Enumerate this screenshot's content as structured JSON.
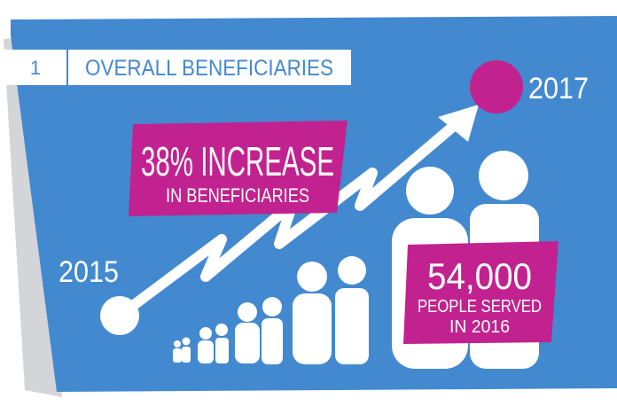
{
  "header": {
    "number": "1",
    "title": "OVERALL BENEFICIARIES"
  },
  "timeline": {
    "start_year": "2015",
    "end_year": "2017"
  },
  "callouts": [
    {
      "headline": "38% INCREASE",
      "lines": [
        "IN BENEFICIARIES"
      ]
    },
    {
      "headline": "54,000",
      "lines": [
        "PEOPLE SERVED",
        "IN 2016"
      ]
    }
  ]
}
